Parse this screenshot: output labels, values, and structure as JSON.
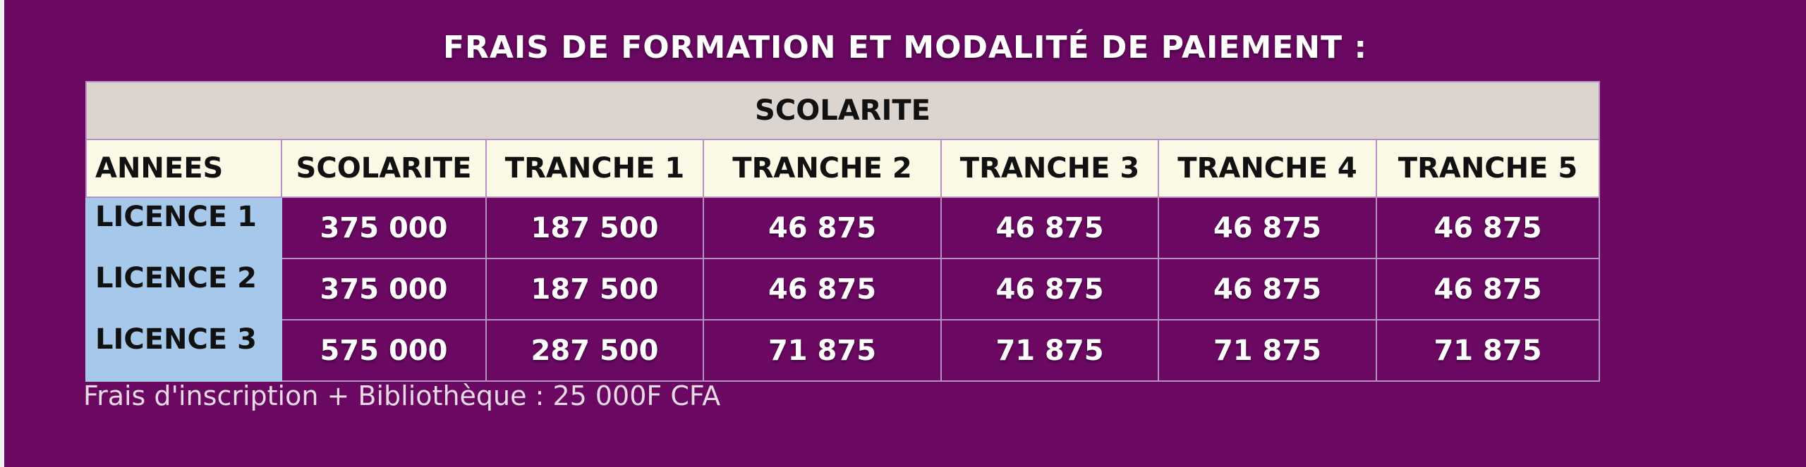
{
  "title": "FRAIS DE FORMATION ET MODALITÉ DE PAIEMENT :",
  "table": {
    "group_header": "SCOLARITE",
    "columns": [
      "ANNEES",
      "SCOLARITE",
      "TRANCHE 1",
      "TRANCHE 2",
      "TRANCHE 3",
      "TRANCHE 4",
      "TRANCHE 5"
    ],
    "rows": [
      {
        "year": "LICENCE 1",
        "values": [
          "375 000",
          "187 500",
          "46 875",
          "46 875",
          "46 875",
          "46 875"
        ]
      },
      {
        "year": "LICENCE 2",
        "values": [
          "375 000",
          "187 500",
          "46 875",
          "46 875",
          "46 875",
          "46 875"
        ]
      },
      {
        "year": "LICENCE 3",
        "values": [
          "575 000",
          "287 500",
          "71 875",
          "71 875",
          "71 875",
          "71 875"
        ]
      }
    ]
  },
  "note": "Frais d'inscription + Bibliothèque : 25 000F CFA",
  "colors": {
    "background": "#6a0862",
    "group_header_bg": "#dcd4cf",
    "column_header_bg": "#fcfae6",
    "year_cell_bg": "#a6c8ea"
  }
}
